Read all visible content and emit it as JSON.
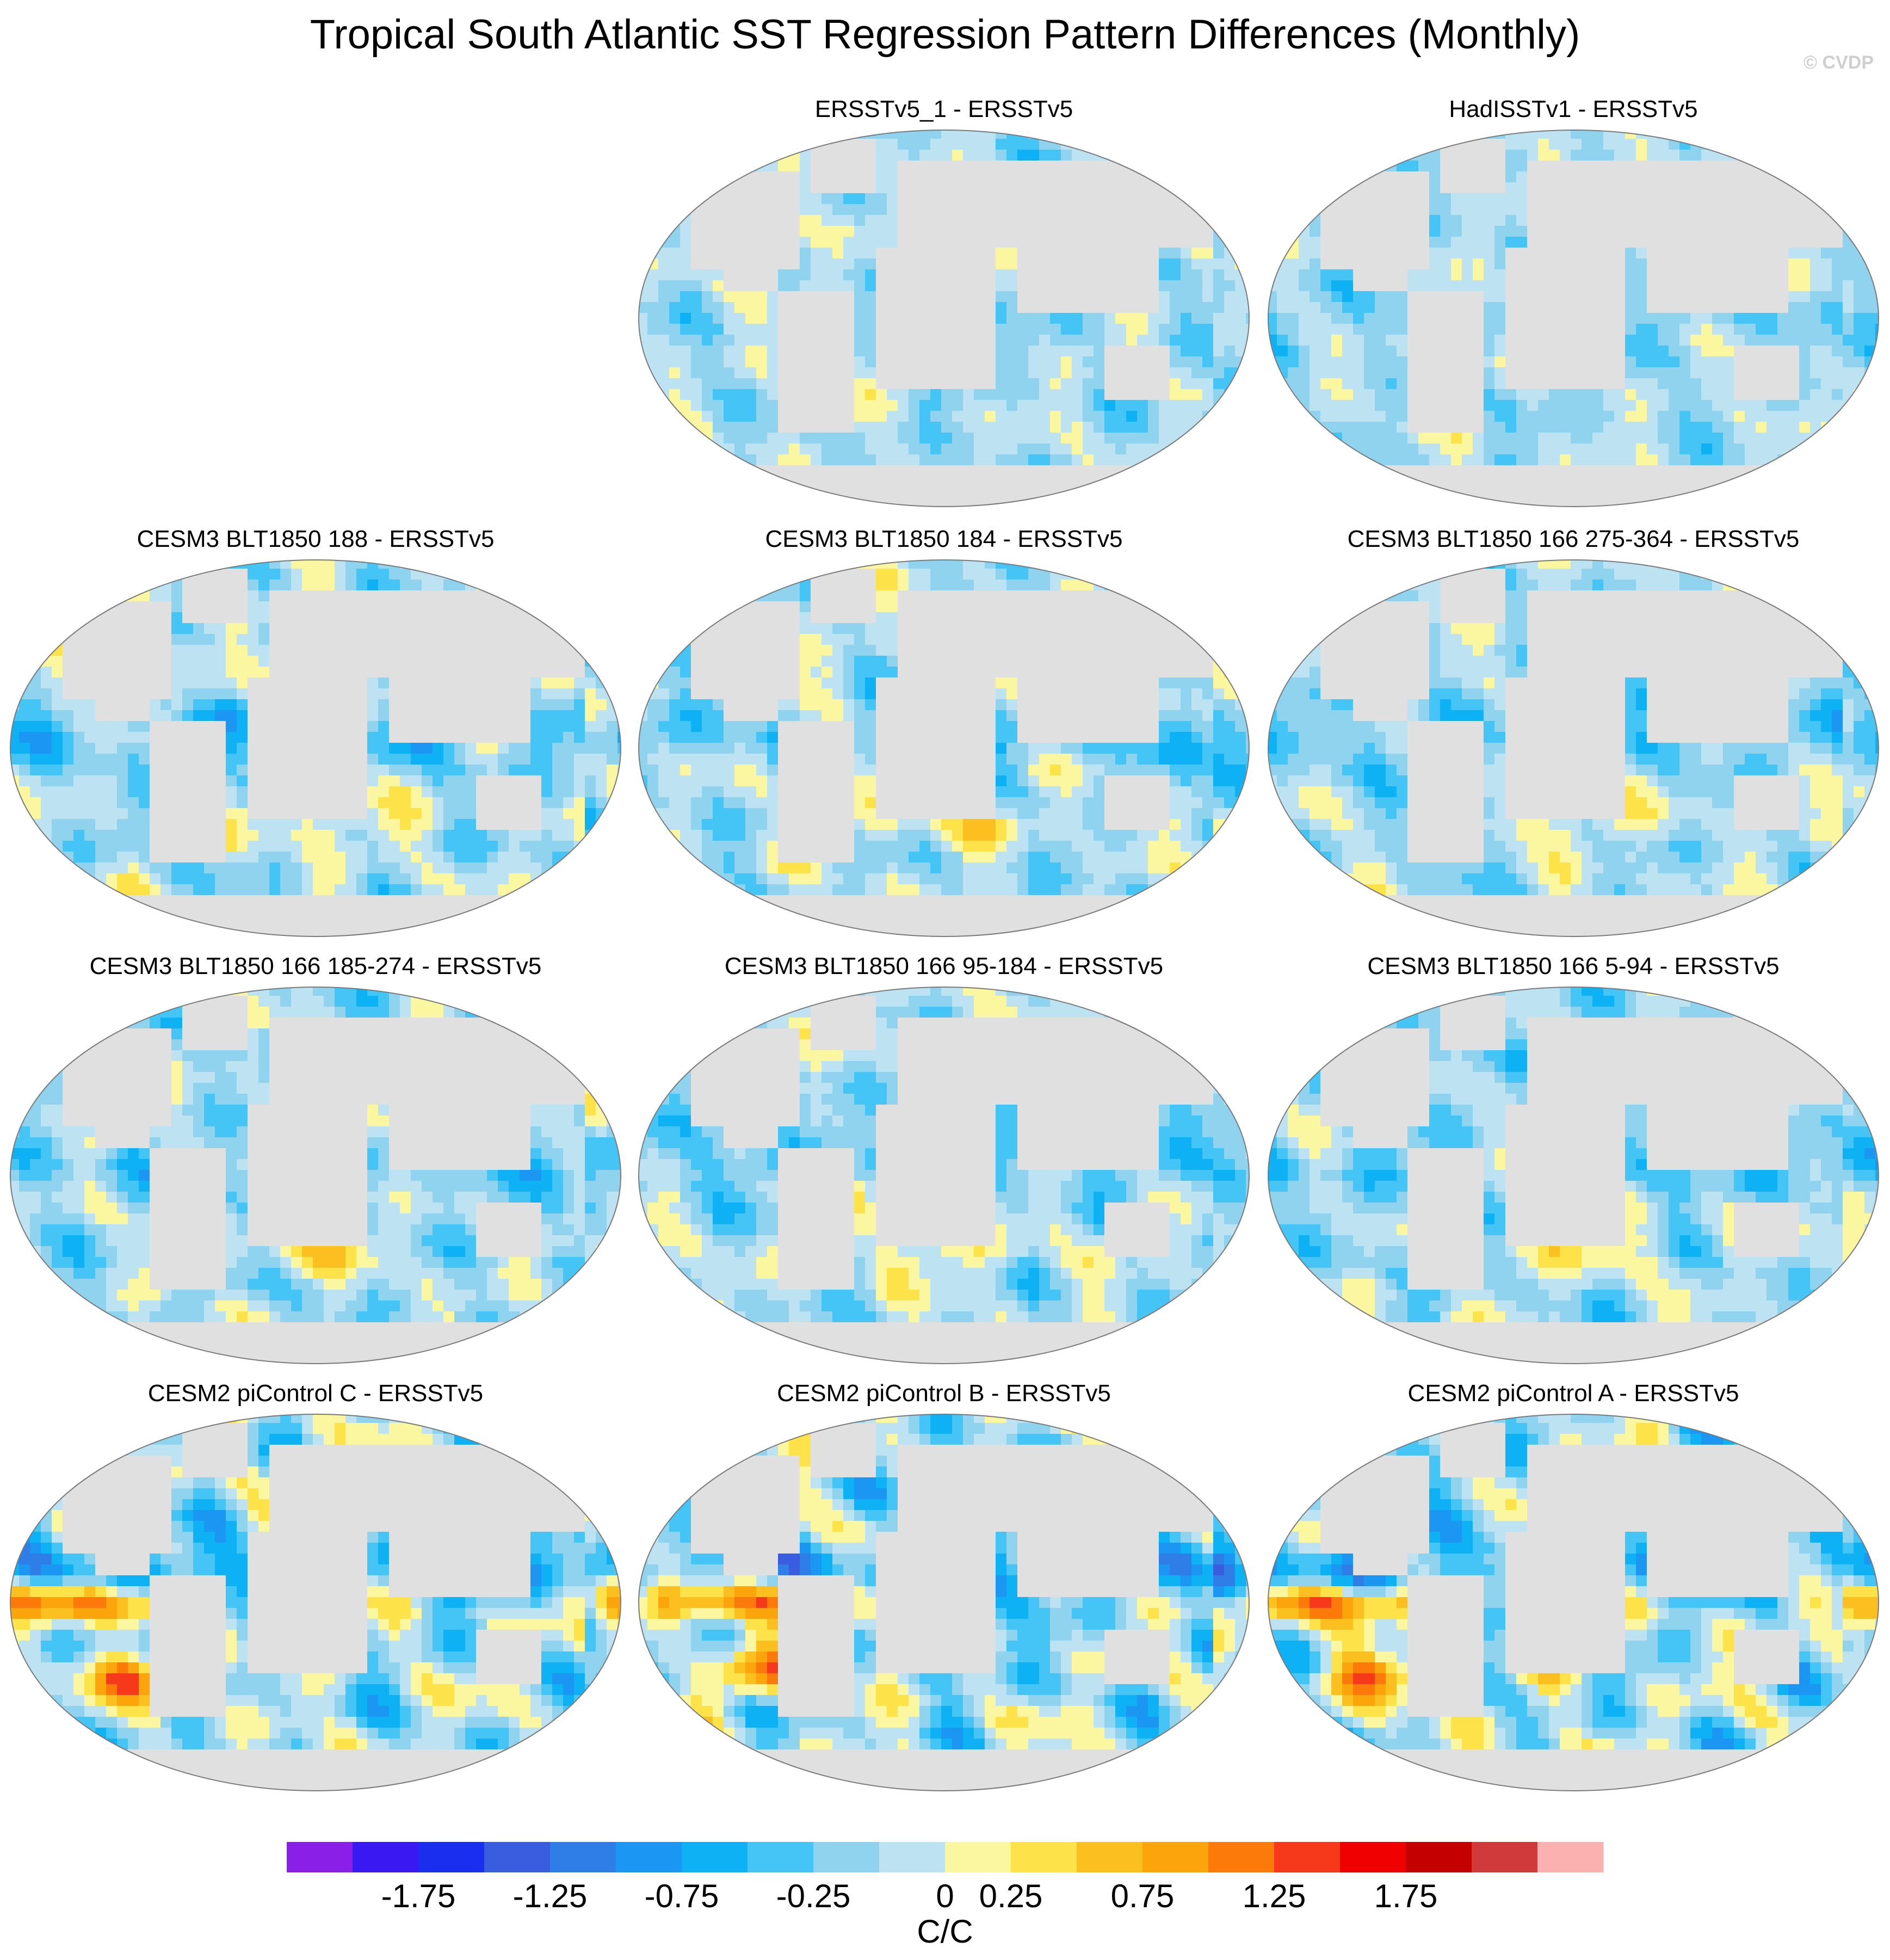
{
  "title": "Tropical South Atlantic SST Regression Pattern Differences (Monthly)",
  "watermark": "© CVDP",
  "chart_data": {
    "type": "map-grid",
    "projection": "Robinson",
    "panels": [
      {
        "id": "p1",
        "row": 0,
        "col": 1,
        "title": "ERSSTv5_1 - ERSSTv5",
        "intensity": 0.7,
        "pattern": "obs"
      },
      {
        "id": "p2",
        "row": 0,
        "col": 2,
        "title": "HadISSTv1 - ERSSTv5",
        "intensity": 0.7,
        "pattern": "obs2"
      },
      {
        "id": "p3",
        "row": 1,
        "col": 0,
        "title": "CESM3 BLT1850 188 - ERSSTv5",
        "intensity": 0.9,
        "pattern": "model"
      },
      {
        "id": "p4",
        "row": 1,
        "col": 1,
        "title": "CESM3 BLT1850 184 - ERSSTv5",
        "intensity": 0.85,
        "pattern": "model"
      },
      {
        "id": "p5",
        "row": 1,
        "col": 2,
        "title": "CESM3 BLT1850 166 275-364 - ERSSTv5",
        "intensity": 0.8,
        "pattern": "model"
      },
      {
        "id": "p6",
        "row": 2,
        "col": 0,
        "title": "CESM3 BLT1850 166 185-274 - ERSSTv5",
        "intensity": 0.85,
        "pattern": "model"
      },
      {
        "id": "p7",
        "row": 2,
        "col": 1,
        "title": "CESM3 BLT1850 166 95-184 - ERSSTv5",
        "intensity": 0.85,
        "pattern": "model"
      },
      {
        "id": "p8",
        "row": 2,
        "col": 2,
        "title": "CESM3 BLT1850 166 5-94 - ERSSTv5",
        "intensity": 0.85,
        "pattern": "model"
      },
      {
        "id": "p9",
        "row": 3,
        "col": 0,
        "title": "CESM2 piControl C - ERSSTv5",
        "intensity": 1.2,
        "pattern": "cesm2"
      },
      {
        "id": "p10",
        "row": 3,
        "col": 1,
        "title": "CESM2 piControl B - ERSSTv5",
        "intensity": 1.25,
        "pattern": "cesm2"
      },
      {
        "id": "p11",
        "row": 3,
        "col": 2,
        "title": "CESM2 piControl A - ERSSTv5",
        "intensity": 1.3,
        "pattern": "cesm2"
      }
    ],
    "colorbar": {
      "units": "C/C",
      "levels": [
        -2.0,
        -1.75,
        -1.5,
        -1.25,
        -1.0,
        -0.75,
        -0.5,
        -0.25,
        0.0,
        0.25,
        0.5,
        0.75,
        1.0,
        1.25,
        1.5,
        1.75,
        2.0
      ],
      "colors": [
        "#8a1fe8",
        "#3a18f2",
        "#1a2ef0",
        "#3a5de0",
        "#2f7ee8",
        "#1b96f2",
        "#0fb1f5",
        "#45c5f6",
        "#8fd3ef",
        "#bde3f3",
        "#fbf7a0",
        "#fde24a",
        "#fcbf20",
        "#fca40c",
        "#fb7a0a",
        "#f5391a",
        "#f10000",
        "#c40000",
        "#d03a3a",
        "#fcb1b1"
      ],
      "tick_labels": [
        "-1.75",
        "-1.25",
        "-0.75",
        "-0.25",
        "0",
        "0.25",
        "0.75",
        "1.25",
        "1.75"
      ]
    }
  }
}
